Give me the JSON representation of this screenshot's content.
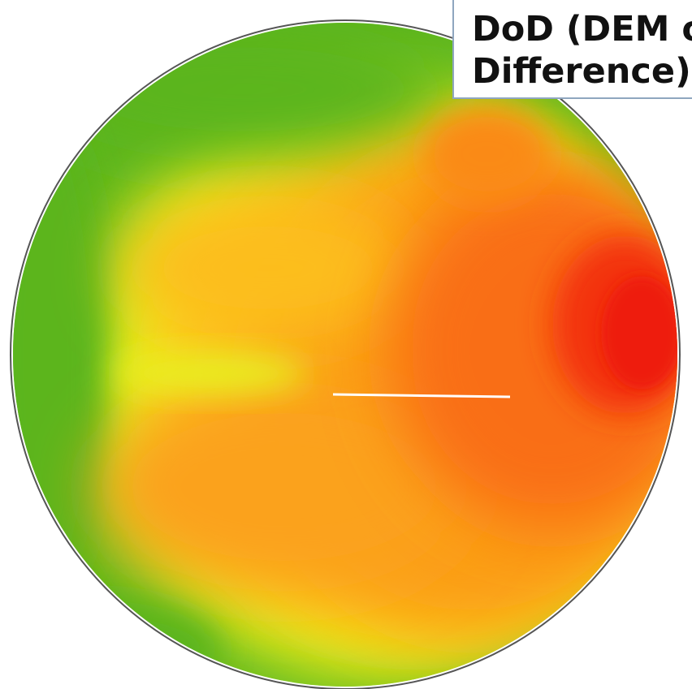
{
  "label": {
    "line1": "DoD (DEM of",
    "line2": "Difference)"
  }
}
